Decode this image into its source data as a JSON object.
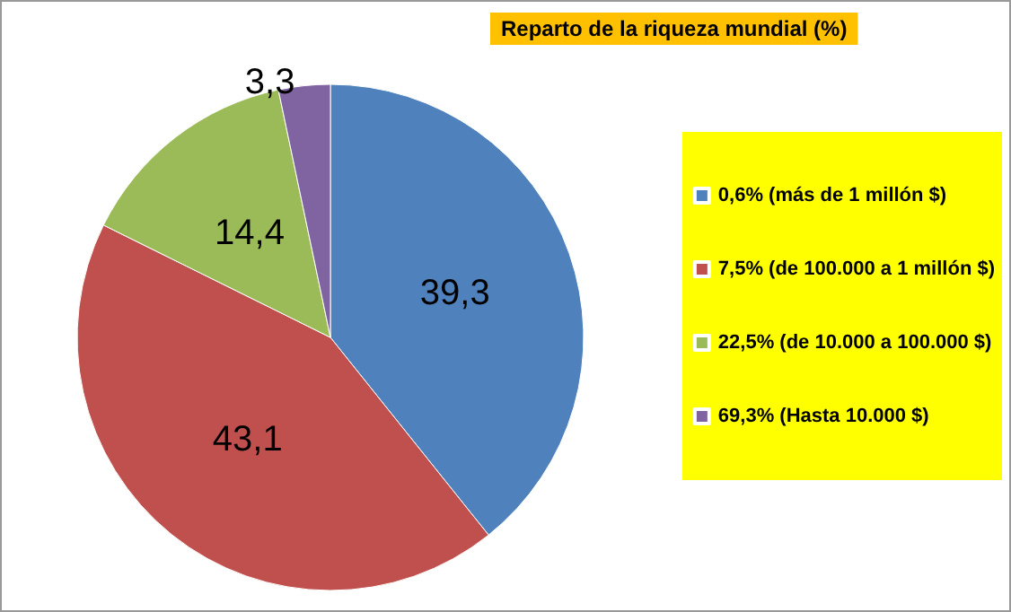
{
  "chart_data": {
    "type": "pie",
    "title": "Reparto de la riqueza mundial (%)",
    "categories": [
      "0,6% (más de 1 millón $)",
      "7,5% (de 100.000 a 1 millón $)",
      "22,5% (de 10.000 a 100.000 $)",
      "69,3% (Hasta 10.000 $)"
    ],
    "values": [
      39.3,
      43.1,
      14.4,
      3.3
    ],
    "colors": [
      "#4f81bd",
      "#c0504d",
      "#9bbb59",
      "#8064a2"
    ],
    "value_labels": [
      "39,3",
      "43,1",
      "14,4",
      "3,3"
    ],
    "legend": "right"
  }
}
